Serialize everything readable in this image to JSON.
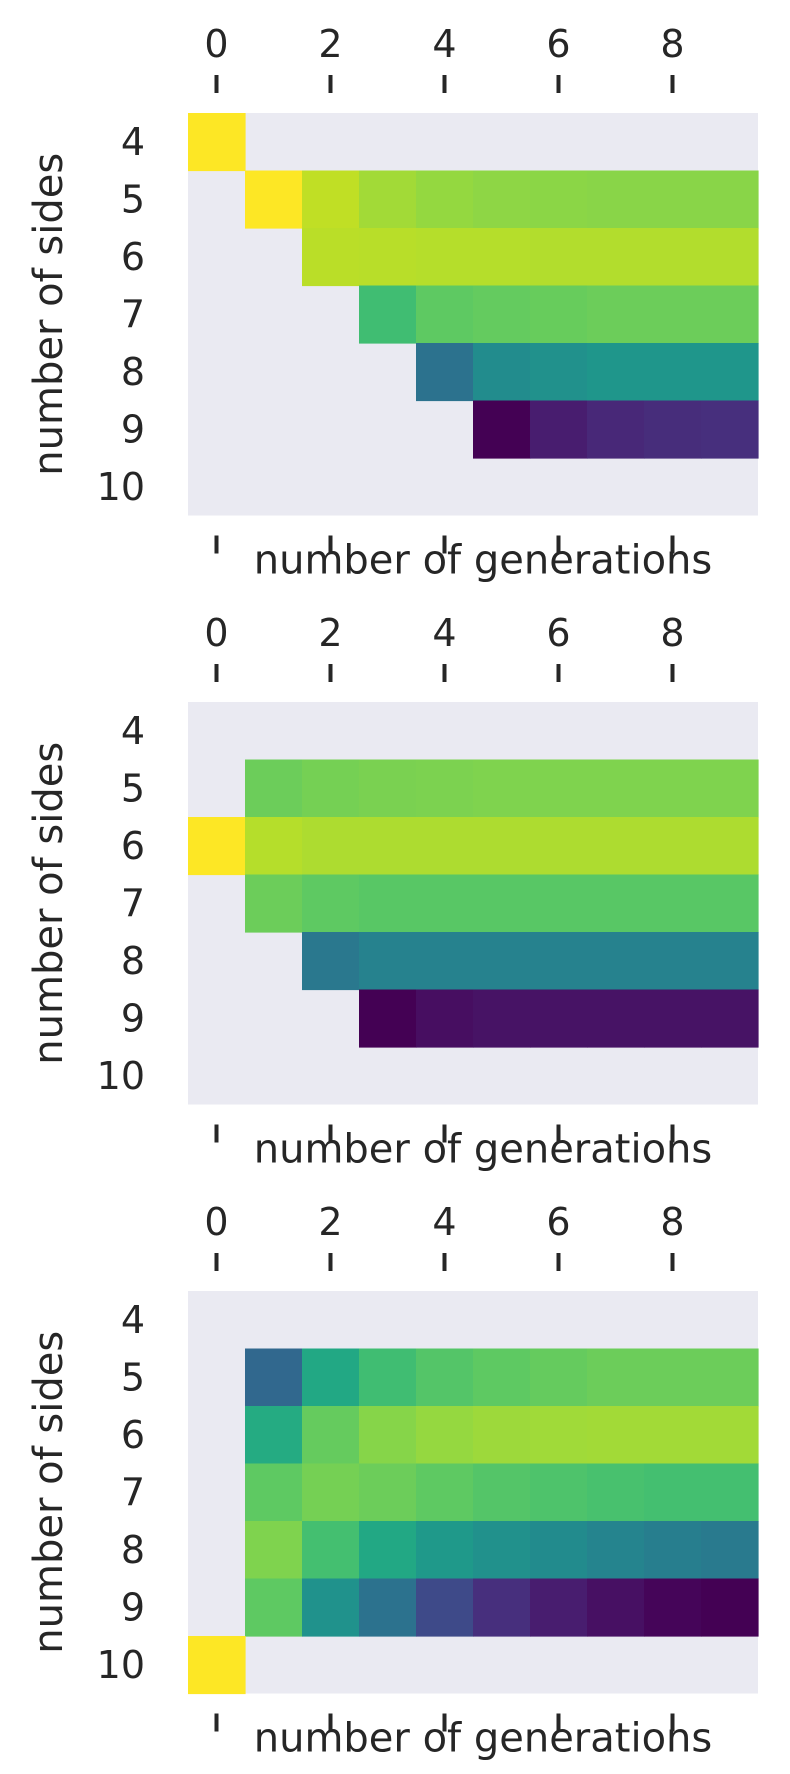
{
  "chart_data": [
    {
      "type": "heatmap",
      "x_ticks": [
        "0",
        "2",
        "4",
        "6",
        "8"
      ],
      "y_ticks": [
        "4",
        "5",
        "6",
        "7",
        "8",
        "9",
        "10"
      ],
      "xlabel": "number of generations",
      "ylabel": "number of sides",
      "grid": false,
      "colormap": "viridis",
      "empty_color": "#eaeaf2",
      "rows": [
        [
          "#fde725",
          null,
          null,
          null,
          null,
          null,
          null,
          null,
          null,
          null
        ],
        [
          null,
          "#fde725",
          "#c0df25",
          "#a2da37",
          "#94d840",
          "#8ed645",
          "#8bd646",
          "#89d548",
          "#89d548",
          "#89d548"
        ],
        [
          null,
          null,
          "#bade28",
          "#b8de29",
          "#b5de2b",
          "#b5de2b",
          "#b2dd2d",
          "#b2dd2d",
          "#b2dd2d",
          "#b2dd2d"
        ],
        [
          null,
          null,
          null,
          "#40bd72",
          "#5ec962",
          "#64cb5f",
          "#67cc5c",
          "#6ccd5a",
          "#6ccd5a",
          "#6ccd5a"
        ],
        [
          null,
          null,
          null,
          null,
          "#2c728e",
          "#228c8d",
          "#21918c",
          "#1f968b",
          "#1f968b",
          "#1f968b"
        ],
        [
          null,
          null,
          null,
          null,
          null,
          "#440154",
          "#481d6f",
          "#482878",
          "#472d7b",
          "#472f7d"
        ],
        [
          null,
          null,
          null,
          null,
          null,
          null,
          null,
          null,
          null,
          null
        ]
      ]
    },
    {
      "type": "heatmap",
      "x_ticks": [
        "0",
        "2",
        "4",
        "6",
        "8"
      ],
      "y_ticks": [
        "4",
        "5",
        "6",
        "7",
        "8",
        "9",
        "10"
      ],
      "xlabel": "number of generations",
      "ylabel": "number of sides",
      "grid": false,
      "colormap": "viridis",
      "empty_color": "#eaeaf2",
      "rows": [
        [
          null,
          null,
          null,
          null,
          null,
          null,
          null,
          null,
          null,
          null
        ],
        [
          null,
          "#6ccd5a",
          "#75d054",
          "#7ad151",
          "#7cd250",
          "#7fd34e",
          "#7fd34e",
          "#7fd34e",
          "#7fd34e",
          "#7fd34e"
        ],
        [
          "#fde725",
          "#b5de2b",
          "#addc30",
          "#addc30",
          "#addc30",
          "#addc30",
          "#addc30",
          "#addc30",
          "#addc30",
          "#addc30"
        ],
        [
          null,
          "#6ccd5a",
          "#5ec962",
          "#58c765",
          "#58c765",
          "#58c765",
          "#58c765",
          "#58c765",
          "#58c765",
          "#58c765"
        ],
        [
          null,
          null,
          "#2a788e",
          "#26828e",
          "#26828e",
          "#26828e",
          "#26828e",
          "#26828e",
          "#26828e",
          "#26828e"
        ],
        [
          null,
          null,
          null,
          "#440154",
          "#470e61",
          "#471365",
          "#471365",
          "#471365",
          "#471365",
          "#471365"
        ],
        [
          null,
          null,
          null,
          null,
          null,
          null,
          null,
          null,
          null,
          null
        ]
      ]
    },
    {
      "type": "heatmap",
      "x_ticks": [
        "0",
        "2",
        "4",
        "6",
        "8"
      ],
      "y_ticks": [
        "4",
        "5",
        "6",
        "7",
        "8",
        "9",
        "10"
      ],
      "xlabel": "number of generations",
      "ylabel": "number of sides",
      "grid": false,
      "colormap": "viridis",
      "empty_color": "#eaeaf2",
      "rows": [
        [
          null,
          null,
          null,
          null,
          null,
          null,
          null,
          null,
          null,
          null
        ],
        [
          null,
          "#31688e",
          "#22a884",
          "#40bd72",
          "#54c568",
          "#5ec962",
          "#65cb5e",
          "#6ccd5a",
          "#6ccd5a",
          "#6ccd5a"
        ],
        [
          null,
          "#25ab82",
          "#65cb5e",
          "#86d549",
          "#95d840",
          "#9dd93b",
          "#a0da39",
          "#a2da37",
          "#a2da37",
          "#a2da37"
        ],
        [
          null,
          "#5ec962",
          "#75d054",
          "#6ccd5a",
          "#5ec962",
          "#54c568",
          "#4ec36b",
          "#48c16e",
          "#44bf70",
          "#44bf70"
        ],
        [
          null,
          "#7fd34e",
          "#44bf70",
          "#22a884",
          "#1f998a",
          "#21918c",
          "#228b8d",
          "#25848e",
          "#277e8e",
          "#297a8e"
        ],
        [
          null,
          "#5ec962",
          "#20928c",
          "#2c728e",
          "#3e4a89",
          "#472f7d",
          "#481d6f",
          "#471063",
          "#450559",
          "#440154"
        ],
        [
          "#fde725",
          null,
          null,
          null,
          null,
          null,
          null,
          null,
          null,
          null
        ]
      ]
    }
  ]
}
